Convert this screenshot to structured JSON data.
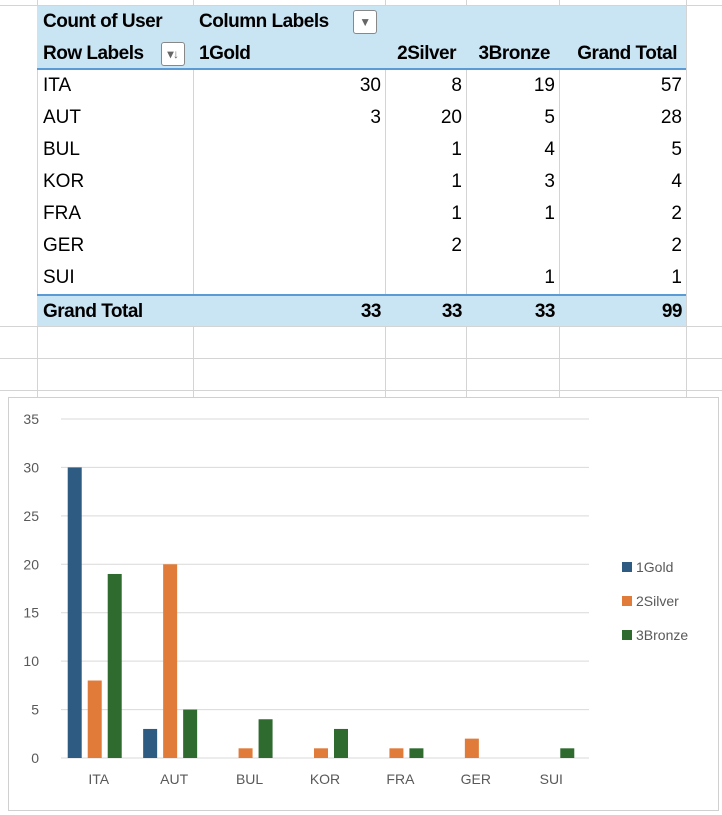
{
  "pivot": {
    "value_field": "Count of User",
    "column_labels": "Column Labels",
    "row_labels": "Row Labels",
    "columns": [
      "1Gold",
      "2Silver",
      "3Bronze",
      "Grand Total"
    ],
    "rows": [
      {
        "label": "ITA",
        "values": [
          "30",
          "8",
          "19",
          "57"
        ]
      },
      {
        "label": "AUT",
        "values": [
          "3",
          "20",
          "5",
          "28"
        ]
      },
      {
        "label": "BUL",
        "values": [
          "",
          "1",
          "4",
          "5"
        ]
      },
      {
        "label": "KOR",
        "values": [
          "",
          "1",
          "3",
          "4"
        ]
      },
      {
        "label": "FRA",
        "values": [
          "",
          "1",
          "1",
          "2"
        ]
      },
      {
        "label": "GER",
        "values": [
          "",
          "2",
          "",
          "2"
        ]
      },
      {
        "label": "SUI",
        "values": [
          "",
          "",
          "1",
          "1"
        ]
      }
    ],
    "grand_total": {
      "label": "Grand Total",
      "values": [
        "33",
        "33",
        "33",
        "99"
      ]
    },
    "header_color": "#c9e4f2"
  },
  "chart_data": {
    "type": "bar",
    "categories": [
      "ITA",
      "AUT",
      "BUL",
      "KOR",
      "FRA",
      "GER",
      "SUI"
    ],
    "series": [
      {
        "name": "1Gold",
        "color": "#2e5b82",
        "values": [
          30,
          3,
          0,
          0,
          0,
          0,
          0
        ]
      },
      {
        "name": "2Silver",
        "color": "#e07b39",
        "values": [
          8,
          20,
          1,
          1,
          1,
          2,
          0
        ]
      },
      {
        "name": "3Bronze",
        "color": "#2f6b2f",
        "values": [
          19,
          5,
          4,
          3,
          1,
          0,
          1
        ]
      }
    ],
    "ylim": [
      0,
      35
    ],
    "yticks": [
      "0",
      "5",
      "10",
      "15",
      "20",
      "25",
      "30",
      "35"
    ],
    "grid": true,
    "legend": "right"
  }
}
